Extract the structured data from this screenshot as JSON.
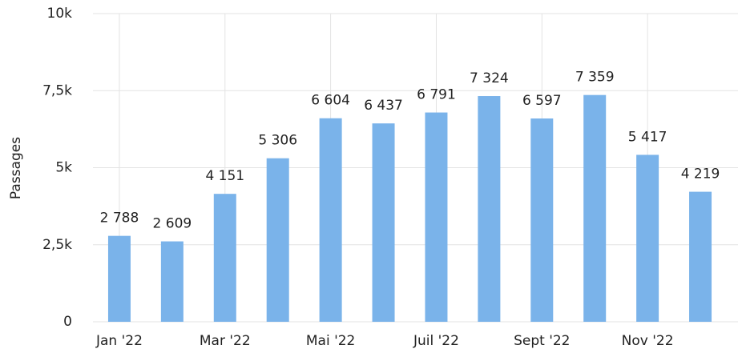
{
  "chart_data": {
    "type": "bar",
    "y_label": "Passages",
    "categories": [
      "Jan '22",
      null,
      "Mar '22",
      null,
      "Mai '22",
      null,
      "Juil '22",
      null,
      "Sept '22",
      null,
      "Nov '22",
      null
    ],
    "values": [
      2788,
      2609,
      4151,
      5306,
      6604,
      6437,
      6791,
      7324,
      6597,
      7359,
      5417,
      4219
    ],
    "value_labels": [
      "2 788",
      "2 609",
      "4 151",
      "5 306",
      "6 604",
      "6 437",
      "6 791",
      "7 324",
      "6 597",
      "7 359",
      "5 417",
      "4 219"
    ],
    "color": "#7ab3ea",
    "ylim": [
      0,
      10000
    ],
    "yticks": [
      0,
      {
        "value": 2500,
        "label": "2,5k"
      },
      {
        "value": 5000,
        "label": "5k"
      },
      {
        "value": 7500,
        "label": "7,5k"
      },
      {
        "value": 10000,
        "label": "10k"
      }
    ],
    "grid": true
  }
}
